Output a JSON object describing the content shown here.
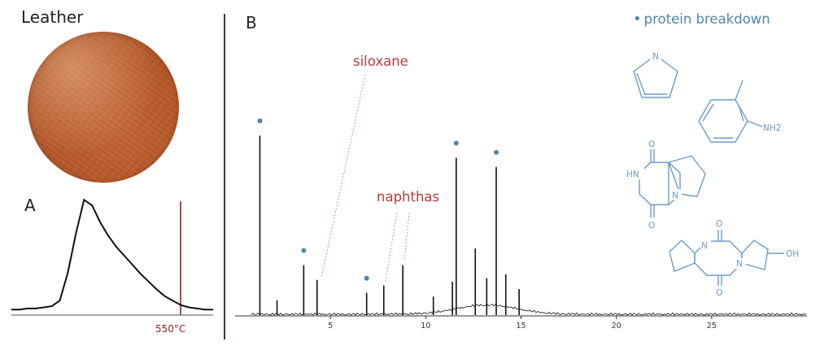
{
  "panel_left": {
    "title": "Leather",
    "label": "A",
    "temperature_label": "550°C"
  },
  "panel_right": {
    "label": "B",
    "legend": "protein breakdown",
    "annotations": {
      "siloxane": "siloxane",
      "naphthas": "naphthas"
    }
  },
  "structures": {
    "amine_label": "NH2",
    "pyrrole_n": "N",
    "diketo_nh": "HN",
    "hydroxy_label": "OH",
    "carbonyl_o": "O",
    "ring_n": "N"
  },
  "colors": {
    "accent_blue": "#4f87a6",
    "annotation_red": "#b93a3f",
    "marker_line": "#8b2323",
    "divider": "#2e3d4c"
  },
  "chart_data": [
    {
      "type": "line",
      "panel": "A",
      "title": "",
      "xlabel": "",
      "ylabel": "",
      "marker_label": "550°C",
      "series": [
        {
          "values": [
            0.02,
            0.02,
            0.03,
            0.03,
            0.04,
            0.05,
            0.1,
            0.35,
            0.7,
            1.0,
            0.95,
            0.8,
            0.68,
            0.58,
            0.5,
            0.42,
            0.34,
            0.27,
            0.2,
            0.14,
            0.1,
            0.06,
            0.04,
            0.03,
            0.02,
            0.02
          ]
        }
      ]
    },
    {
      "type": "line",
      "panel": "B",
      "title": "",
      "xlabel": "",
      "ylabel": "",
      "xlim": [
        0,
        30
      ],
      "xticks": [
        5,
        10,
        15,
        20,
        25
      ],
      "peaks": [
        {
          "x": 1.3,
          "y": 0.97,
          "marked": true
        },
        {
          "x": 2.2,
          "y": 0.08,
          "marked": false
        },
        {
          "x": 3.6,
          "y": 0.27,
          "marked": true
        },
        {
          "x": 4.3,
          "y": 0.19,
          "marked": false
        },
        {
          "x": 6.9,
          "y": 0.12,
          "marked": true
        },
        {
          "x": 7.8,
          "y": 0.16,
          "marked": false
        },
        {
          "x": 8.8,
          "y": 0.27,
          "marked": false
        },
        {
          "x": 10.4,
          "y": 0.1,
          "marked": false
        },
        {
          "x": 11.4,
          "y": 0.18,
          "marked": false
        },
        {
          "x": 11.6,
          "y": 0.85,
          "marked": true
        },
        {
          "x": 12.6,
          "y": 0.36,
          "marked": false
        },
        {
          "x": 13.2,
          "y": 0.2,
          "marked": false
        },
        {
          "x": 13.7,
          "y": 0.8,
          "marked": true
        },
        {
          "x": 14.2,
          "y": 0.22,
          "marked": false
        },
        {
          "x": 14.9,
          "y": 0.14,
          "marked": false
        }
      ]
    }
  ]
}
